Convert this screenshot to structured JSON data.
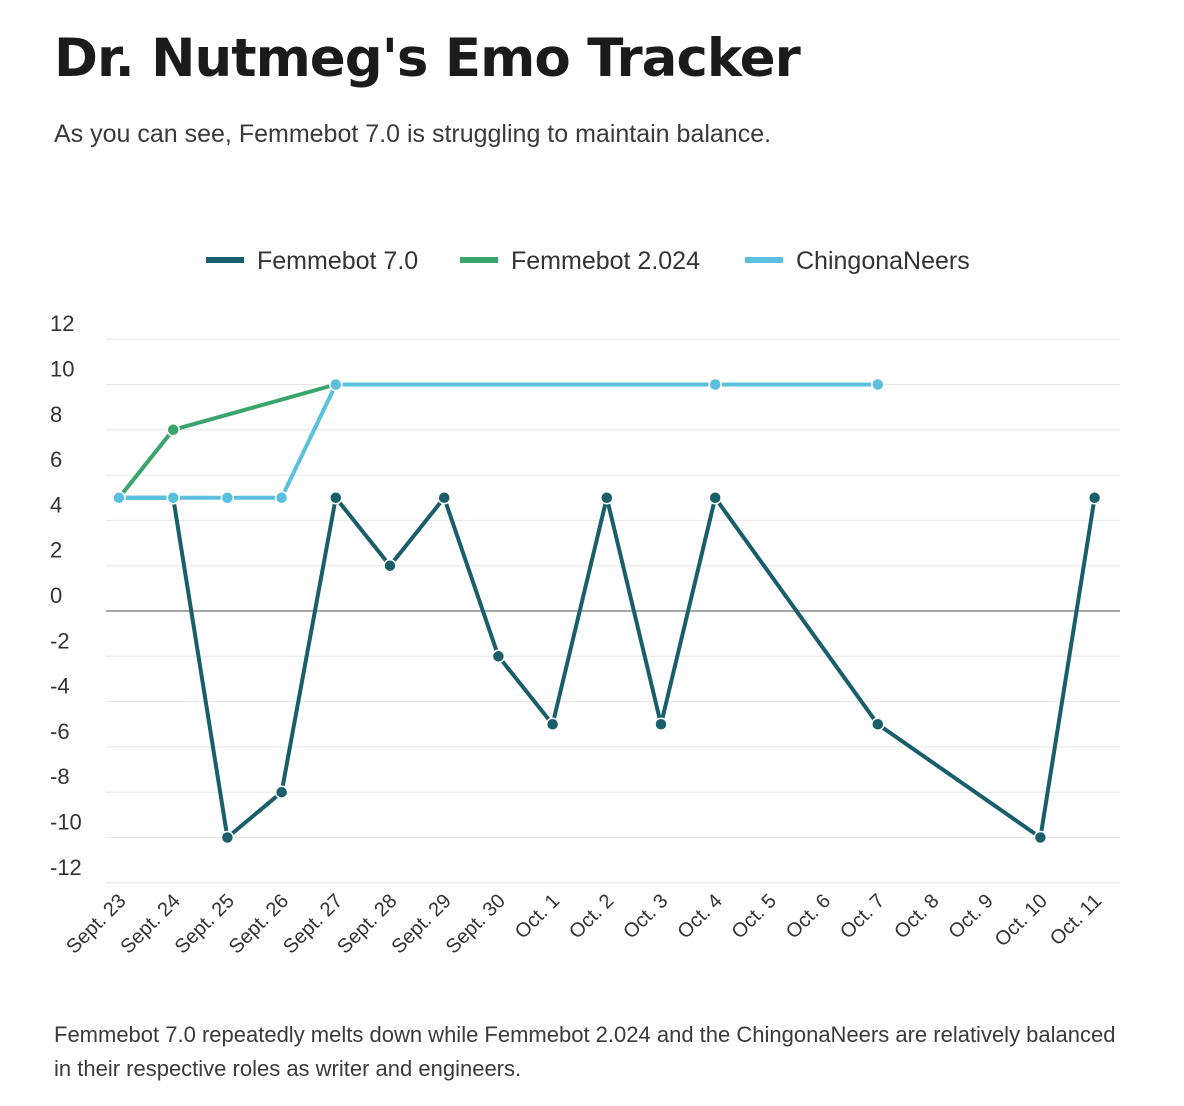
{
  "title": "Dr. Nutmeg's Emo Tracker",
  "subtitle": "As you can see, Femmebot 7.0 is struggling to maintain balance.",
  "footnote": "Femmebot 7.0 repeatedly melts down while Femmebot 2.024 and the ChingonaNeers are relatively balanced in their respective roles as writer and engineers.",
  "chart_data": {
    "type": "line",
    "categories": [
      "Sept. 23",
      "Sept. 24",
      "Sept. 25",
      "Sept. 26",
      "Sept. 27",
      "Sept. 28",
      "Sept. 29",
      "Sept. 30",
      "Oct. 1",
      "Oct. 2",
      "Oct. 3",
      "Oct. 4",
      "Oct. 5",
      "Oct. 6",
      "Oct. 7",
      "Oct. 8",
      "Oct. 9",
      "Oct. 10",
      "Oct. 11"
    ],
    "series": [
      {
        "name": "Femmebot 7.0",
        "color": "#195e6b",
        "values": [
          5,
          5,
          -10,
          -8,
          5,
          2,
          5,
          -2,
          -5,
          5,
          -5,
          5,
          null,
          null,
          -5,
          null,
          null,
          -10,
          5
        ]
      },
      {
        "name": "Femmebot 2.024",
        "color": "#3aa56b",
        "values": [
          5,
          8,
          null,
          null,
          10,
          null,
          null,
          null,
          null,
          null,
          null,
          10,
          null,
          null,
          null,
          null,
          null,
          null,
          null
        ]
      },
      {
        "name": "ChingonaNeers",
        "color": "#5bc0de",
        "values": [
          5,
          5,
          5,
          5,
          10,
          null,
          null,
          null,
          null,
          null,
          null,
          10,
          null,
          null,
          10,
          null,
          null,
          null,
          null
        ]
      }
    ],
    "y_ticks": [
      12,
      10,
      8,
      6,
      4,
      2,
      0,
      -2,
      -4,
      -6,
      -8,
      -10,
      -12
    ],
    "ylim": [
      -12,
      12
    ],
    "grid": true,
    "legend_position": "top-center"
  }
}
